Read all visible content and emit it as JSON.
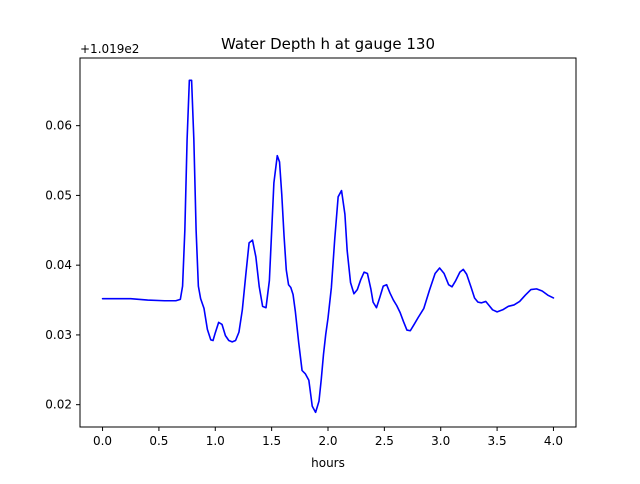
{
  "chart_data": {
    "type": "line",
    "title": "Water Depth h at gauge 130",
    "xlabel": "hours",
    "ylabel": "",
    "offset_text": "+1.019e2",
    "xlim": [
      -0.2,
      4.2
    ],
    "ylim": [
      0.0168,
      0.0697
    ],
    "xticks": [
      0.0,
      0.5,
      1.0,
      1.5,
      2.0,
      2.5,
      3.0,
      3.5,
      4.0
    ],
    "xtick_labels": [
      "0.0",
      "0.5",
      "1.0",
      "1.5",
      "2.0",
      "2.5",
      "3.0",
      "3.5",
      "4.0"
    ],
    "yticks": [
      0.02,
      0.03,
      0.04,
      0.05,
      0.06
    ],
    "ytick_labels": [
      "0.02",
      "0.03",
      "0.04",
      "0.05",
      "0.06"
    ],
    "grid": false,
    "legend": "none",
    "series": [
      {
        "color": "#0000ff",
        "x": [
          0.0,
          0.1,
          0.25,
          0.4,
          0.55,
          0.65,
          0.69,
          0.71,
          0.73,
          0.75,
          0.77,
          0.79,
          0.81,
          0.83,
          0.85,
          0.87,
          0.9,
          0.93,
          0.96,
          0.98,
          1.0,
          1.03,
          1.06,
          1.09,
          1.12,
          1.15,
          1.18,
          1.21,
          1.24,
          1.27,
          1.3,
          1.33,
          1.36,
          1.39,
          1.42,
          1.45,
          1.48,
          1.5,
          1.52,
          1.55,
          1.57,
          1.59,
          1.61,
          1.63,
          1.65,
          1.67,
          1.69,
          1.71,
          1.74,
          1.77,
          1.8,
          1.83,
          1.86,
          1.89,
          1.92,
          1.94,
          1.96,
          1.98,
          2.0,
          2.03,
          2.06,
          2.09,
          2.12,
          2.15,
          2.17,
          2.2,
          2.23,
          2.26,
          2.29,
          2.32,
          2.35,
          2.38,
          2.4,
          2.43,
          2.46,
          2.49,
          2.52,
          2.55,
          2.58,
          2.61,
          2.64,
          2.67,
          2.7,
          2.73,
          2.76,
          2.8,
          2.85,
          2.9,
          2.95,
          2.99,
          3.03,
          3.07,
          3.1,
          3.13,
          3.17,
          3.2,
          3.23,
          3.27,
          3.3,
          3.33,
          3.36,
          3.4,
          3.43,
          3.46,
          3.5,
          3.55,
          3.6,
          3.65,
          3.7,
          3.75,
          3.8,
          3.85,
          3.9,
          3.95,
          4.0
        ],
        "y": [
          0.0352,
          0.0352,
          0.0352,
          0.035,
          0.0349,
          0.0349,
          0.0351,
          0.037,
          0.045,
          0.058,
          0.0665,
          0.0665,
          0.058,
          0.045,
          0.037,
          0.0352,
          0.0338,
          0.0308,
          0.0293,
          0.0292,
          0.0303,
          0.0318,
          0.0315,
          0.0299,
          0.0292,
          0.029,
          0.0292,
          0.0304,
          0.0336,
          0.0385,
          0.0432,
          0.0436,
          0.0412,
          0.0369,
          0.0341,
          0.0339,
          0.0378,
          0.0448,
          0.0518,
          0.0557,
          0.0548,
          0.0501,
          0.0442,
          0.0393,
          0.0372,
          0.0368,
          0.0358,
          0.0334,
          0.0289,
          0.0249,
          0.0244,
          0.0235,
          0.0198,
          0.0189,
          0.0205,
          0.0236,
          0.0272,
          0.0301,
          0.0324,
          0.0368,
          0.0438,
          0.0498,
          0.0507,
          0.0473,
          0.0421,
          0.0375,
          0.0359,
          0.0365,
          0.0379,
          0.039,
          0.0388,
          0.0366,
          0.0347,
          0.0339,
          0.0354,
          0.037,
          0.0372,
          0.036,
          0.035,
          0.0342,
          0.0332,
          0.0319,
          0.0307,
          0.0306,
          0.0314,
          0.0325,
          0.0338,
          0.0364,
          0.0388,
          0.0396,
          0.0388,
          0.0372,
          0.0369,
          0.0377,
          0.039,
          0.0394,
          0.0387,
          0.0368,
          0.0353,
          0.0347,
          0.0346,
          0.0348,
          0.0342,
          0.0336,
          0.0333,
          0.0336,
          0.0341,
          0.0343,
          0.0348,
          0.0357,
          0.0365,
          0.0366,
          0.0363,
          0.0357,
          0.0353
        ]
      }
    ]
  }
}
